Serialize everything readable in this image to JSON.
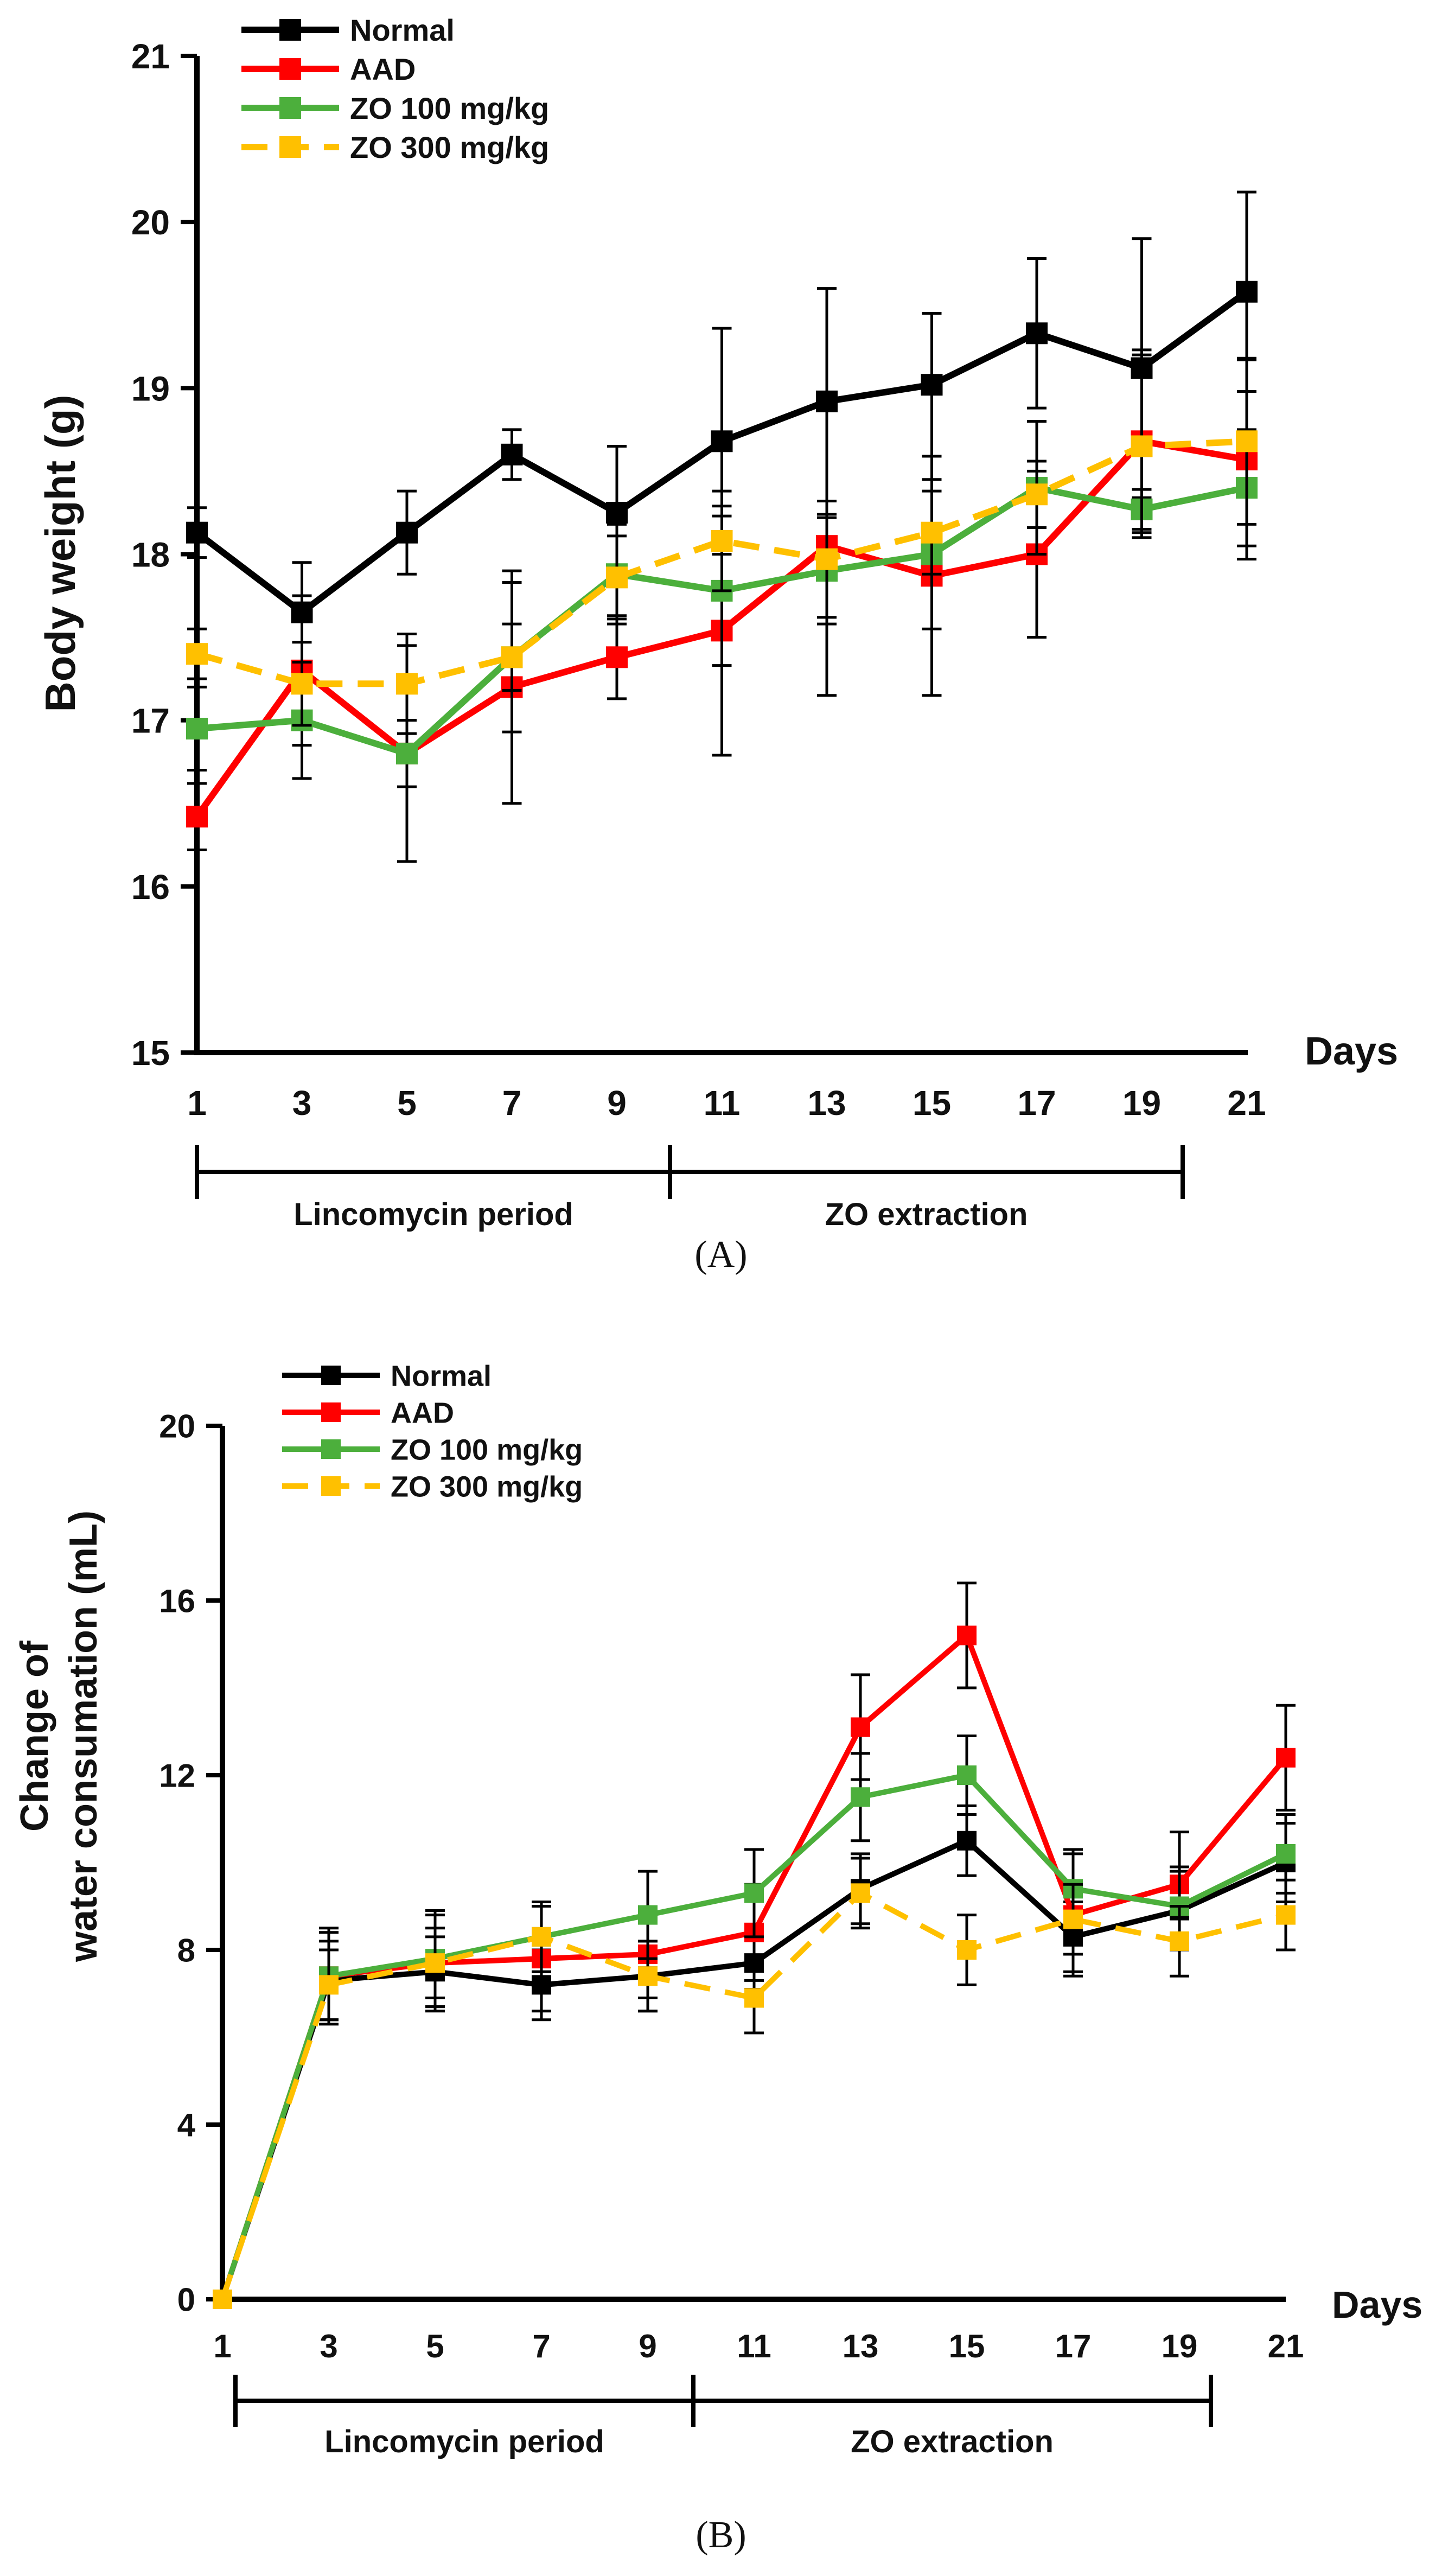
{
  "chart_data": [
    {
      "panel": "A",
      "type": "line",
      "title": "",
      "xlabel": "Days",
      "ylabel": "Body weight (g)",
      "x": [
        1,
        3,
        5,
        7,
        9,
        11,
        13,
        15,
        17,
        19,
        21
      ],
      "x_tick_labels": [
        "1",
        "3",
        "5",
        "7",
        "9",
        "11",
        "13",
        "15",
        "17",
        "19",
        "21"
      ],
      "ylim": [
        15,
        21
      ],
      "y_ticks": [
        15,
        16,
        17,
        18,
        19,
        20,
        21
      ],
      "grid": false,
      "legend_position": "top-left",
      "series": [
        {
          "name": "Normal",
          "color": "#000000",
          "dashed": false,
          "values": [
            18.13,
            17.65,
            18.13,
            18.6,
            18.25,
            18.68,
            18.92,
            19.02,
            19.33,
            19.12,
            19.58
          ],
          "errors": [
            0.15,
            0.3,
            0.25,
            0.15,
            0.4,
            0.68,
            0.68,
            0.43,
            0.45,
            0.78,
            0.6
          ]
        },
        {
          "name": "AAD",
          "color": "#ff0000",
          "dashed": false,
          "values": [
            16.42,
            17.3,
            16.8,
            17.2,
            17.38,
            17.54,
            18.05,
            17.87,
            18.0,
            18.68,
            18.57
          ],
          "errors": [
            0.2,
            0.45,
            0.65,
            0.7,
            0.25,
            0.75,
            0.9,
            0.72,
            0.5,
            0.55,
            0.6
          ]
        },
        {
          "name": "ZO 100 mg/kg",
          "color": "#4caf3c",
          "dashed": false,
          "values": [
            16.95,
            17.0,
            16.8,
            17.38,
            17.88,
            17.78,
            17.9,
            18.0,
            18.4,
            18.27,
            18.4
          ],
          "errors": [
            0.25,
            0.35,
            0.2,
            0.45,
            0.3,
            0.45,
            0.32,
            0.45,
            0.4,
            0.12,
            0.35
          ]
        },
        {
          "name": "ZO 300 mg/kg",
          "color": "#ffc000",
          "dashed": true,
          "values": [
            17.4,
            17.22,
            17.22,
            17.38,
            17.86,
            18.08,
            17.97,
            18.13,
            18.36,
            18.65,
            18.68
          ],
          "errors": [
            0.15,
            0.25,
            0.3,
            0.2,
            0.25,
            0.3,
            0.35,
            0.25,
            0.2,
            0.55,
            0.5
          ]
        }
      ],
      "periods": [
        {
          "label": "Lincomycin period",
          "from": 1,
          "to": 10
        },
        {
          "label": "ZO extraction",
          "from": 10,
          "to": 20
        }
      ],
      "panel_label": "(A)"
    },
    {
      "panel": "B",
      "type": "line",
      "title": "",
      "xlabel": "Days",
      "ylabel_lines": [
        "Change of",
        "water consumation (mL)"
      ],
      "x": [
        1,
        3,
        5,
        7,
        9,
        11,
        13,
        15,
        17,
        19,
        21
      ],
      "x_tick_labels": [
        "1",
        "3",
        "5",
        "7",
        "9",
        "11",
        "13",
        "15",
        "17",
        "19",
        "21"
      ],
      "ylim": [
        0,
        20
      ],
      "y_ticks": [
        0,
        4,
        8,
        12,
        16,
        20
      ],
      "grid": false,
      "legend_position": "top-left",
      "series": [
        {
          "name": "Normal",
          "color": "#000000",
          "dashed": false,
          "values": [
            0,
            7.3,
            7.5,
            7.2,
            7.4,
            7.7,
            9.4,
            10.5,
            8.3,
            8.9,
            10.0
          ],
          "errors": [
            0,
            0.9,
            0.8,
            0.8,
            0.8,
            0.6,
            0.8,
            0.8,
            0.8,
            0.9,
            0.9
          ]
        },
        {
          "name": "AAD",
          "color": "#ff0000",
          "dashed": false,
          "values": [
            0,
            7.4,
            7.7,
            7.8,
            7.9,
            8.4,
            13.1,
            15.2,
            8.8,
            9.5,
            12.4
          ],
          "errors": [
            0,
            1.1,
            1.1,
            1.2,
            1.0,
            1.1,
            1.2,
            1.2,
            1.4,
            1.2,
            1.2
          ]
        },
        {
          "name": "ZO 100 mg/kg",
          "color": "#4caf3c",
          "dashed": false,
          "values": [
            0,
            7.4,
            7.8,
            8.3,
            8.8,
            9.3,
            11.5,
            12.0,
            9.4,
            9.0,
            10.2
          ],
          "errors": [
            0,
            1.0,
            1.1,
            0.8,
            1.0,
            1.0,
            1.0,
            0.9,
            0.9,
            0.9,
            0.9
          ]
        },
        {
          "name": "ZO 300 mg/kg",
          "color": "#ffc000",
          "dashed": true,
          "values": [
            0,
            7.2,
            7.7,
            8.3,
            7.4,
            6.9,
            9.3,
            8.0,
            8.7,
            8.2,
            8.8
          ],
          "errors": [
            0,
            0.8,
            0.8,
            0.8,
            0.8,
            0.8,
            0.8,
            0.8,
            0.8,
            0.8,
            0.8
          ]
        }
      ],
      "periods": [
        {
          "label": "Lincomycin period",
          "from": 1,
          "to": 10
        },
        {
          "label": "ZO extraction",
          "from": 10,
          "to": 20
        }
      ],
      "panel_label": "(B)"
    }
  ]
}
